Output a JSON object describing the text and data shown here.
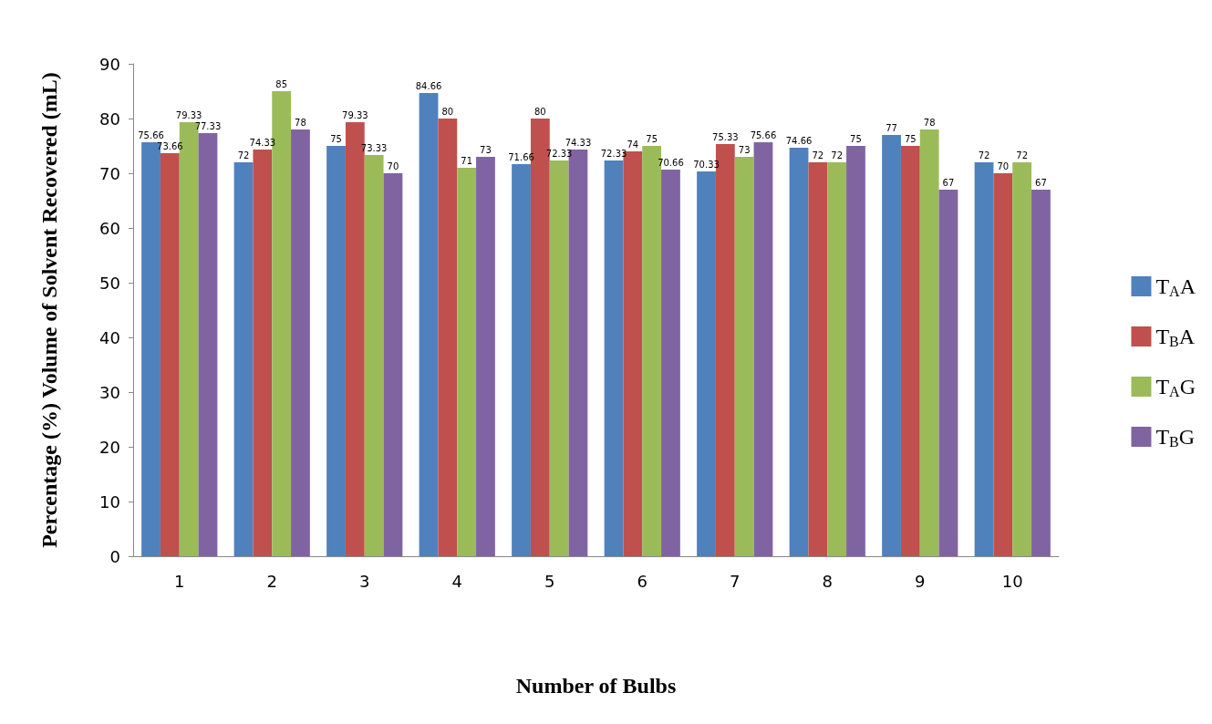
{
  "chart_data": {
    "type": "bar",
    "xlabel": "Number of Bulbs",
    "ylabel": "Percentage (%) Volume of Solvent Recovered (mL)",
    "categories": [
      "1",
      "2",
      "3",
      "4",
      "5",
      "6",
      "7",
      "8",
      "9",
      "10"
    ],
    "series": [
      {
        "name": "T$_{A}$A",
        "color": "#4f81bd",
        "values": [
          75.66,
          72,
          75,
          84.66,
          71.66,
          72.33,
          70.33,
          74.66,
          77,
          72
        ]
      },
      {
        "name": "T$_{B}$A",
        "color": "#c0504d",
        "values": [
          73.66,
          74.33,
          79.33,
          80,
          80,
          74,
          75.33,
          72,
          75,
          70
        ]
      },
      {
        "name": "T$_{A}$G",
        "color": "#9bbb59",
        "values": [
          79.33,
          85,
          73.33,
          71,
          72.33,
          75,
          73,
          72,
          78,
          72
        ]
      },
      {
        "name": "T$_{B}$G",
        "color": "#8064a2",
        "values": [
          77.33,
          78,
          70,
          73,
          74.33,
          70.66,
          75.66,
          75,
          67,
          67
        ]
      }
    ],
    "ylim": [
      0,
      90
    ],
    "yticks": [
      0,
      10,
      20,
      30,
      40,
      50,
      60,
      70,
      80,
      90
    ],
    "grid": false,
    "legend": "right",
    "data_labels": true
  }
}
